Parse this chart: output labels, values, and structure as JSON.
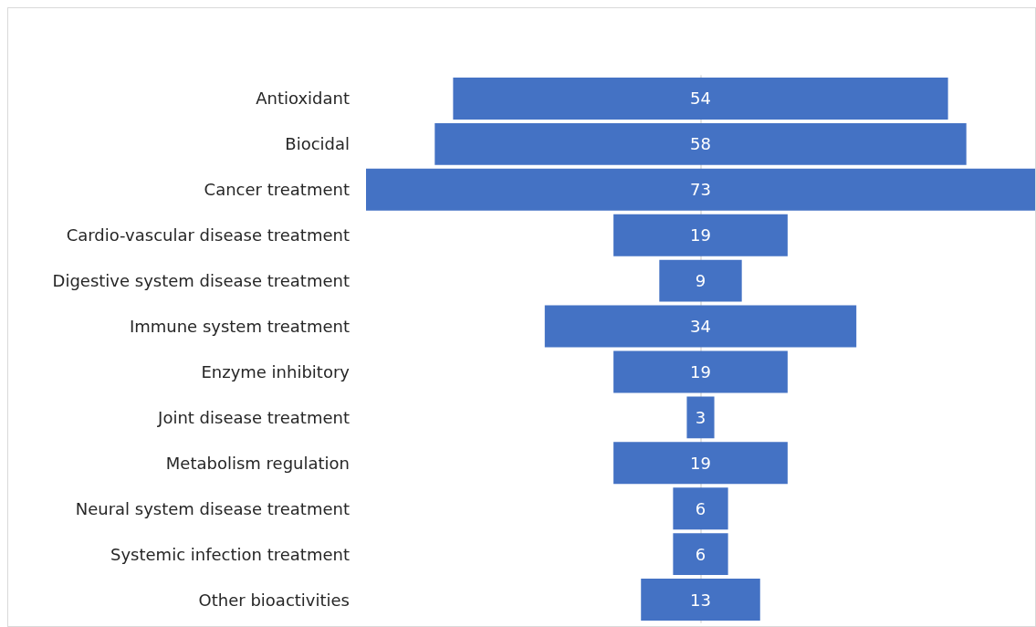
{
  "chart_data": {
    "type": "other",
    "categories": [
      "Antioxidant",
      "Biocidal",
      "Cancer treatment",
      "Cardio-vascular disease treatment",
      "Digestive system disease treatment",
      "Immune system treatment",
      "Enzyme inhibitory",
      "Joint disease treatment",
      "Metabolism regulation",
      "Neural system disease treatment",
      "Systemic infection treatment",
      "Other bioactivities"
    ],
    "values": [
      54,
      58,
      73,
      19,
      9,
      34,
      19,
      3,
      19,
      6,
      6,
      13
    ],
    "color": "#4472c4",
    "data_labels": true
  }
}
